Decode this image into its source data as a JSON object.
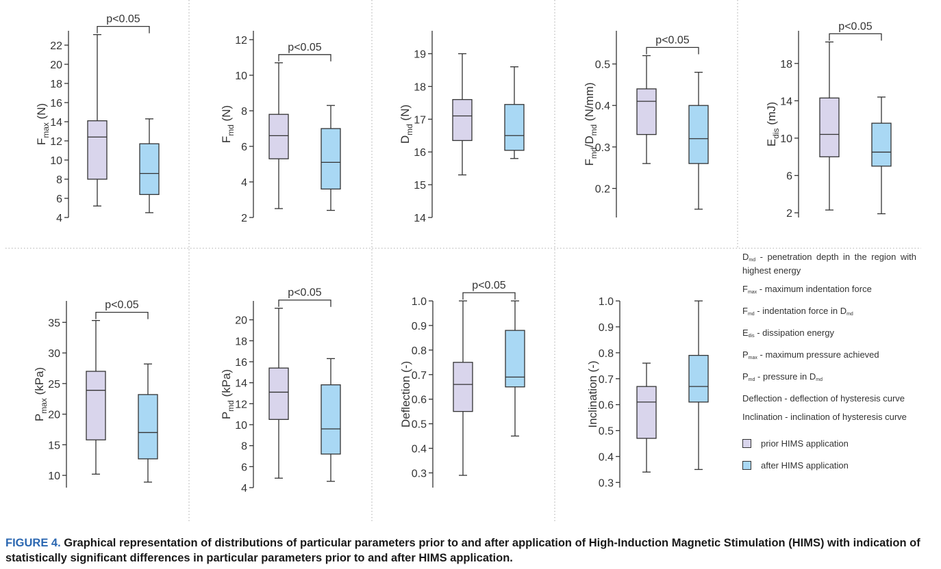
{
  "colors": {
    "prior": "#d9d5ec",
    "after": "#a9d8f4",
    "stroke": "#333333",
    "caption_label": "#2b67b1"
  },
  "group_labels": [
    "prior HIMS application",
    "after HIMS application"
  ],
  "chart_data": [
    {
      "type": "box",
      "ylabel": "F_max (N)",
      "ylabel_main": "F",
      "ylabel_sub": "max",
      "ylabel_unit": " (N)",
      "yticks": [
        4,
        6,
        8,
        10,
        12,
        14,
        16,
        18,
        20,
        22
      ],
      "ylim": [
        4,
        23.5
      ],
      "boxes": [
        {
          "group": "prior HIMS application",
          "min": 5.2,
          "q1": 8.0,
          "median": 12.4,
          "q3": 14.1,
          "max": 23.1
        },
        {
          "group": "after HIMS application",
          "min": 4.5,
          "q1": 6.4,
          "median": 8.6,
          "q3": 11.7,
          "max": 14.3
        }
      ],
      "significance": "p<0.05"
    },
    {
      "type": "box",
      "ylabel": "F_md (N)",
      "ylabel_main": "F",
      "ylabel_sub": "md",
      "ylabel_unit": " (N)",
      "yticks": [
        2,
        4,
        6,
        8,
        10,
        12
      ],
      "ylim": [
        2,
        12.5
      ],
      "boxes": [
        {
          "group": "prior HIMS application",
          "min": 2.5,
          "q1": 5.3,
          "median": 6.6,
          "q3": 7.8,
          "max": 10.7
        },
        {
          "group": "after HIMS application",
          "min": 2.4,
          "q1": 3.6,
          "median": 5.1,
          "q3": 7.0,
          "max": 8.3
        }
      ],
      "significance": "p<0.05"
    },
    {
      "type": "box",
      "ylabel": "D_md (N)",
      "ylabel_main": "D",
      "ylabel_sub": "md",
      "ylabel_unit": " (N)",
      "yticks": [
        14,
        15,
        16,
        17,
        18,
        19
      ],
      "ylim": [
        14,
        19.7
      ],
      "boxes": [
        {
          "group": "prior HIMS application",
          "min": 15.3,
          "q1": 16.35,
          "median": 17.1,
          "q3": 17.6,
          "max": 19.0
        },
        {
          "group": "after HIMS application",
          "min": 15.8,
          "q1": 16.05,
          "median": 16.5,
          "q3": 17.45,
          "max": 18.6
        }
      ],
      "significance": ""
    },
    {
      "type": "box",
      "ylabel": "F_md/D_md (N/mm)",
      "ylabel_main": "F",
      "ylabel_sub": "md",
      "ylabel_main2": "/D",
      "ylabel_sub2": "md",
      "ylabel_unit": " (N/mm)",
      "yticks": [
        0.2,
        0.3,
        0.4,
        0.5
      ],
      "ytick_labels": [
        "0.2",
        "0.3",
        "0.4",
        "0.5"
      ],
      "ylim": [
        0.13,
        0.58
      ],
      "boxes": [
        {
          "group": "prior HIMS application",
          "min": 0.26,
          "q1": 0.33,
          "median": 0.41,
          "q3": 0.44,
          "max": 0.52
        },
        {
          "group": "after HIMS application",
          "min": 0.15,
          "q1": 0.26,
          "median": 0.32,
          "q3": 0.4,
          "max": 0.48
        }
      ],
      "significance": "p<0.05"
    },
    {
      "type": "box",
      "ylabel": "E_dis (mJ)",
      "ylabel_main": "E",
      "ylabel_sub": "dis",
      "ylabel_unit": " (mJ)",
      "yticks": [
        2,
        6,
        10,
        14,
        18
      ],
      "ylim": [
        1.5,
        21.5
      ],
      "boxes": [
        {
          "group": "prior HIMS application",
          "min": 2.3,
          "q1": 8.0,
          "median": 10.4,
          "q3": 14.3,
          "max": 20.3
        },
        {
          "group": "after HIMS application",
          "min": 1.9,
          "q1": 7.0,
          "median": 8.5,
          "q3": 11.6,
          "max": 14.4
        }
      ],
      "significance": "p<0.05"
    },
    {
      "type": "box",
      "ylabel": "P_max (kPa)",
      "ylabel_main": "P",
      "ylabel_sub": "max",
      "ylabel_unit": " (kPa)",
      "yticks": [
        10,
        15,
        20,
        25,
        30,
        35
      ],
      "ylim": [
        8,
        38.5
      ],
      "boxes": [
        {
          "group": "prior HIMS application",
          "min": 10.2,
          "q1": 15.8,
          "median": 23.9,
          "q3": 27.0,
          "max": 35.3
        },
        {
          "group": "after HIMS application",
          "min": 8.9,
          "q1": 12.7,
          "median": 17.0,
          "q3": 23.2,
          "max": 28.2
        }
      ],
      "significance": "p<0.05"
    },
    {
      "type": "box",
      "ylabel": "P_md (kPa)",
      "ylabel_main": "P",
      "ylabel_sub": "md",
      "ylabel_unit": " (kPa)",
      "yticks": [
        4,
        6,
        8,
        10,
        12,
        14,
        16,
        18,
        20
      ],
      "ylim": [
        4,
        21.8
      ],
      "boxes": [
        {
          "group": "prior HIMS application",
          "min": 4.9,
          "q1": 10.5,
          "median": 13.1,
          "q3": 15.4,
          "max": 21.1
        },
        {
          "group": "after HIMS application",
          "min": 4.6,
          "q1": 7.2,
          "median": 9.6,
          "q3": 13.8,
          "max": 16.3
        }
      ],
      "significance": "p<0.05"
    },
    {
      "type": "box",
      "ylabel": "Deflection (-)",
      "yticks": [
        0.3,
        0.4,
        0.5,
        0.6,
        0.7,
        0.8,
        0.9,
        1.0
      ],
      "ytick_labels": [
        "0.3",
        "0.4",
        "0.5",
        "0.6",
        "0.7",
        "0.8",
        "0.9",
        "1.0"
      ],
      "ylim": [
        0.24,
        1.0
      ],
      "boxes": [
        {
          "group": "prior HIMS application",
          "min": 0.29,
          "q1": 0.55,
          "median": 0.66,
          "q3": 0.75,
          "max": 1.0
        },
        {
          "group": "after HIMS application",
          "min": 0.45,
          "q1": 0.65,
          "median": 0.69,
          "q3": 0.88,
          "max": 1.0
        }
      ],
      "significance": "p<0.05"
    },
    {
      "type": "box",
      "ylabel": "Inclination (-)",
      "yticks": [
        0.3,
        0.4,
        0.5,
        0.6,
        0.7,
        0.8,
        0.9,
        1.0
      ],
      "ytick_labels": [
        "0.3",
        "0.4",
        "0.5",
        "0.6",
        "0.7",
        "0.8",
        "0.9",
        "1.0"
      ],
      "ylim": [
        0.28,
        1.0
      ],
      "boxes": [
        {
          "group": "prior HIMS application",
          "min": 0.34,
          "q1": 0.47,
          "median": 0.61,
          "q3": 0.67,
          "max": 0.76
        },
        {
          "group": "after HIMS application",
          "min": 0.35,
          "q1": 0.61,
          "median": 0.67,
          "q3": 0.79,
          "max": 1.0
        }
      ],
      "significance": ""
    }
  ],
  "legend": {
    "definitions": [
      {
        "sym": "D",
        "sub": "md",
        "text": " - penetration depth in the region with highest energy"
      },
      {
        "sym": "F",
        "sub": "max",
        "text": " - maximum indentation force"
      },
      {
        "sym": "F",
        "sub": "md",
        "text": " - indentation force in D",
        "sub2": "md"
      },
      {
        "sym": "E",
        "sub": "dis",
        "text": " - dissipation energy"
      },
      {
        "sym": "P",
        "sub": "max",
        "text": " - maximum pressure achieved"
      },
      {
        "sym": "P",
        "sub": "md",
        "text": " - pressure in D",
        "sub2": "md"
      },
      {
        "sym": "Deflection",
        "sub": "",
        "text": " - deflection of hysteresis curve"
      },
      {
        "sym": "Inclination",
        "sub": "",
        "text": " - inclination of hysteresis curve"
      }
    ],
    "keys": [
      {
        "label": "prior HIMS application",
        "color": "#d9d5ec"
      },
      {
        "label": "after HIMS application",
        "color": "#a9d8f4"
      }
    ]
  },
  "caption": {
    "label": "FIGURE 4.",
    "text": "Graphical representation of distributions of particular parameters prior to and after application of High-Induction Magnetic Stimulation (HIMS) with indication of statistically significant differences in particular parameters prior to and after HIMS application."
  }
}
